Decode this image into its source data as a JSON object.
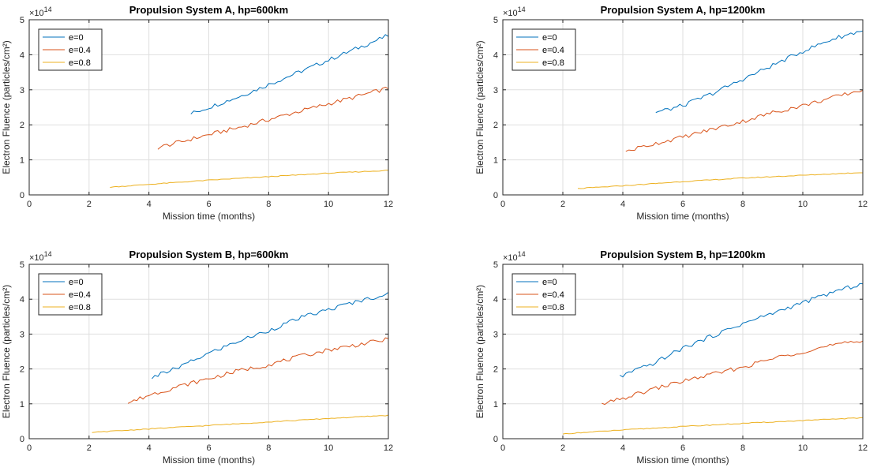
{
  "chart_data": [
    {
      "type": "line",
      "title": "Propulsion System A, hp=600km",
      "xlabel": "Mission time (months)",
      "ylabel": "Electron Fluence (particles/cm²)",
      "exponent_label": "×10",
      "exponent_power": "14",
      "xlim": [
        0,
        12
      ],
      "ylim": [
        0,
        5
      ],
      "xticks": [
        0,
        2,
        4,
        6,
        8,
        10,
        12
      ],
      "yticks": [
        0,
        1,
        2,
        3,
        4,
        5
      ],
      "grid": true,
      "legend": "top-left",
      "series": [
        {
          "name": "e=0",
          "color": "#0072BD",
          "x": [
            5.4,
            6,
            7,
            8,
            9,
            10,
            11,
            12
          ],
          "y": [
            2.32,
            2.5,
            2.8,
            3.15,
            3.5,
            3.85,
            4.2,
            4.55
          ]
        },
        {
          "name": "e=0.4",
          "color": "#D95319",
          "x": [
            4.3,
            5,
            6,
            7,
            8,
            9,
            10,
            11,
            12
          ],
          "y": [
            1.35,
            1.5,
            1.72,
            1.92,
            2.15,
            2.38,
            2.6,
            2.82,
            3.05
          ]
        },
        {
          "name": "e=0.8",
          "color": "#EDB120",
          "x": [
            2.7,
            4,
            6,
            8,
            10,
            12
          ],
          "y": [
            0.22,
            0.3,
            0.42,
            0.52,
            0.62,
            0.7
          ]
        }
      ]
    },
    {
      "type": "line",
      "title": "Propulsion System A, hp=1200km",
      "xlabel": "Mission time (months)",
      "ylabel": "Electron Fluence (particles/cm²)",
      "exponent_label": "×10",
      "exponent_power": "14",
      "xlim": [
        0,
        12
      ],
      "ylim": [
        0,
        5
      ],
      "xticks": [
        0,
        2,
        4,
        6,
        8,
        10,
        12
      ],
      "yticks": [
        0,
        1,
        2,
        3,
        4,
        5
      ],
      "grid": true,
      "legend": "top-left",
      "series": [
        {
          "name": "e=0",
          "color": "#0072BD",
          "x": [
            5.1,
            6,
            7,
            8,
            9,
            10,
            11,
            12
          ],
          "y": [
            2.35,
            2.55,
            2.9,
            3.3,
            3.7,
            4.1,
            4.45,
            4.7
          ]
        },
        {
          "name": "e=0.4",
          "color": "#D95319",
          "x": [
            4.1,
            5,
            6,
            7,
            8,
            9,
            10,
            11,
            12
          ],
          "y": [
            1.25,
            1.45,
            1.65,
            1.88,
            2.1,
            2.35,
            2.55,
            2.78,
            3.0
          ]
        },
        {
          "name": "e=0.8",
          "color": "#EDB120",
          "x": [
            2.5,
            4,
            6,
            8,
            10,
            12
          ],
          "y": [
            0.18,
            0.26,
            0.38,
            0.48,
            0.56,
            0.64
          ]
        }
      ]
    },
    {
      "type": "line",
      "title": "Propulsion System B, hp=600km",
      "xlabel": "Mission time (months)",
      "ylabel": "Electron Fluence (particles/cm²)",
      "exponent_label": "×10",
      "exponent_power": "14",
      "xlim": [
        0,
        12
      ],
      "ylim": [
        0,
        5
      ],
      "xticks": [
        0,
        2,
        4,
        6,
        8,
        10,
        12
      ],
      "yticks": [
        0,
        1,
        2,
        3,
        4,
        5
      ],
      "grid": true,
      "legend": "top-left",
      "series": [
        {
          "name": "e=0",
          "color": "#0072BD",
          "x": [
            4.1,
            5,
            6,
            7,
            8,
            9,
            10,
            11,
            12
          ],
          "y": [
            1.75,
            2.05,
            2.45,
            2.8,
            3.1,
            3.45,
            3.7,
            3.95,
            4.15
          ]
        },
        {
          "name": "e=0.4",
          "color": "#D95319",
          "x": [
            3.3,
            4,
            5,
            6,
            7,
            8,
            9,
            10,
            11,
            12
          ],
          "y": [
            1.02,
            1.25,
            1.5,
            1.72,
            1.95,
            2.12,
            2.35,
            2.55,
            2.7,
            2.85
          ]
        },
        {
          "name": "e=0.8",
          "color": "#EDB120",
          "x": [
            2.1,
            4,
            6,
            8,
            10,
            12
          ],
          "y": [
            0.18,
            0.28,
            0.38,
            0.48,
            0.58,
            0.67
          ]
        }
      ]
    },
    {
      "type": "line",
      "title": "Propulsion System B, hp=1200km",
      "xlabel": "Mission time (months)",
      "ylabel": "Electron Fluence (particles/cm²)",
      "exponent_label": "×10",
      "exponent_power": "14",
      "xlim": [
        0,
        12
      ],
      "ylim": [
        0,
        5
      ],
      "xticks": [
        0,
        2,
        4,
        6,
        8,
        10,
        12
      ],
      "yticks": [
        0,
        1,
        2,
        3,
        4,
        5
      ],
      "grid": true,
      "legend": "top-left",
      "series": [
        {
          "name": "e=0",
          "color": "#0072BD",
          "x": [
            3.9,
            5,
            6,
            7,
            8,
            9,
            10,
            11,
            12
          ],
          "y": [
            1.78,
            2.15,
            2.6,
            2.95,
            3.3,
            3.6,
            3.9,
            4.2,
            4.45
          ]
        },
        {
          "name": "e=0.4",
          "color": "#D95319",
          "x": [
            3.3,
            4,
            5,
            6,
            7,
            8,
            9,
            10,
            11,
            12
          ],
          "y": [
            0.98,
            1.15,
            1.42,
            1.65,
            1.85,
            2.05,
            2.3,
            2.5,
            2.68,
            2.8
          ]
        },
        {
          "name": "e=0.8",
          "color": "#EDB120",
          "x": [
            2.0,
            4,
            6,
            8,
            10,
            12
          ],
          "y": [
            0.14,
            0.25,
            0.35,
            0.44,
            0.52,
            0.6
          ]
        }
      ]
    }
  ]
}
